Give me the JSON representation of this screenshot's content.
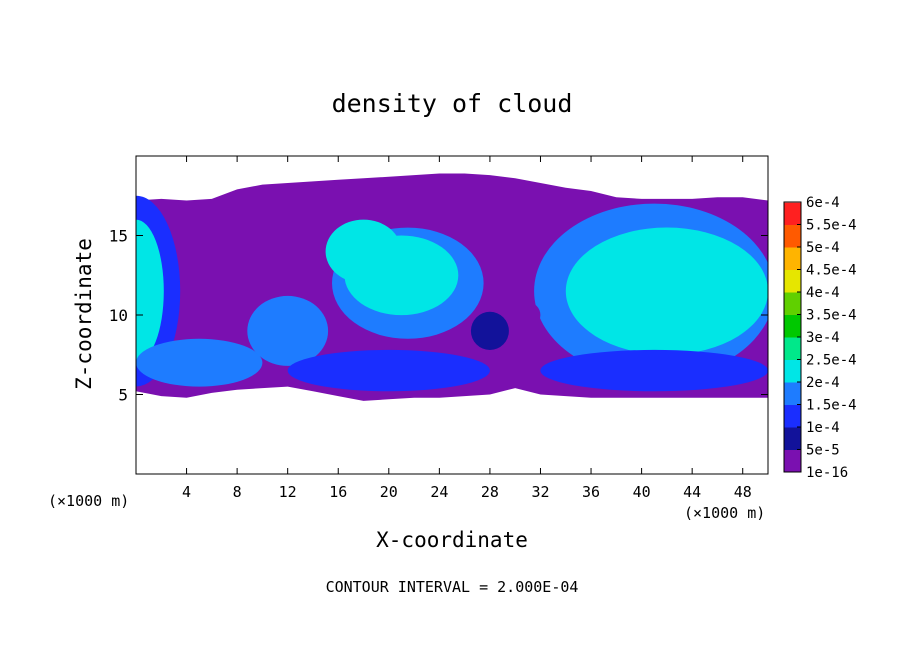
{
  "chart_data": {
    "type": "heatmap",
    "title": "density of cloud",
    "xlabel": "X-coordinate",
    "ylabel": "Z-coordinate",
    "x_unit_left": "(×1000 m)",
    "x_unit_right": "(×1000 m)",
    "xlim": [
      0,
      50
    ],
    "ylim": [
      0,
      20
    ],
    "x_ticks": [
      4,
      8,
      12,
      16,
      20,
      24,
      28,
      32,
      36,
      40,
      44,
      48
    ],
    "y_ticks": [
      5,
      10,
      15
    ],
    "footer": "CONTOUR INTERVAL = 2.000E-04",
    "colorbar": {
      "levels": [
        "1e-16",
        "5e-5",
        "1e-4",
        "1.5e-4",
        "2e-4",
        "2.5e-4",
        "3e-4",
        "3.5e-4",
        "4e-4",
        "4.5e-4",
        "5e-4",
        "5.5e-4",
        "6e-4"
      ],
      "colors": [
        "#7a10b0",
        "#12129a",
        "#1a2eff",
        "#1e7cff",
        "#00e6e6",
        "#00e88a",
        "#00c800",
        "#60d000",
        "#e6e600",
        "#ffb400",
        "#ff5a00",
        "#ff2020",
        "#ff8080"
      ]
    },
    "cloud_profile": [
      {
        "x": 0.0,
        "bottom": 5.2,
        "top": 17.2
      },
      {
        "x": 2.0,
        "bottom": 4.9,
        "top": 17.3
      },
      {
        "x": 4.0,
        "bottom": 4.8,
        "top": 17.2
      },
      {
        "x": 6.0,
        "bottom": 5.1,
        "top": 17.3
      },
      {
        "x": 8.0,
        "bottom": 5.3,
        "top": 17.9
      },
      {
        "x": 10.0,
        "bottom": 5.4,
        "top": 18.2
      },
      {
        "x": 12.0,
        "bottom": 5.5,
        "top": 18.3
      },
      {
        "x": 14.0,
        "bottom": 5.2,
        "top": 18.4
      },
      {
        "x": 16.0,
        "bottom": 4.9,
        "top": 18.5
      },
      {
        "x": 18.0,
        "bottom": 4.6,
        "top": 18.6
      },
      {
        "x": 20.0,
        "bottom": 4.7,
        "top": 18.7
      },
      {
        "x": 22.0,
        "bottom": 4.8,
        "top": 18.8
      },
      {
        "x": 24.0,
        "bottom": 4.8,
        "top": 18.9
      },
      {
        "x": 26.0,
        "bottom": 4.9,
        "top": 18.9
      },
      {
        "x": 28.0,
        "bottom": 5.0,
        "top": 18.8
      },
      {
        "x": 30.0,
        "bottom": 5.4,
        "top": 18.6
      },
      {
        "x": 32.0,
        "bottom": 5.0,
        "top": 18.3
      },
      {
        "x": 34.0,
        "bottom": 4.9,
        "top": 18.0
      },
      {
        "x": 36.0,
        "bottom": 4.8,
        "top": 17.8
      },
      {
        "x": 38.0,
        "bottom": 4.8,
        "top": 17.4
      },
      {
        "x": 40.0,
        "bottom": 4.8,
        "top": 17.3
      },
      {
        "x": 42.0,
        "bottom": 4.8,
        "top": 17.3
      },
      {
        "x": 44.0,
        "bottom": 4.8,
        "top": 17.3
      },
      {
        "x": 46.0,
        "bottom": 4.8,
        "top": 17.4
      },
      {
        "x": 48.0,
        "bottom": 4.8,
        "top": 17.4
      },
      {
        "x": 50.0,
        "bottom": 4.8,
        "top": 17.2
      }
    ],
    "density_regions": [
      {
        "name": "left-column-edge",
        "x": 0.0,
        "y": 11.5,
        "rx": 3.5,
        "ry": 6.0,
        "level": 2
      },
      {
        "name": "left-column-core",
        "x": 0.0,
        "y": 11.5,
        "rx": 2.2,
        "ry": 4.5,
        "level": 4
      },
      {
        "name": "lower-band-left",
        "x": 5.0,
        "y": 7.0,
        "rx": 5.0,
        "ry": 1.5,
        "level": 3
      },
      {
        "name": "lobe-8-11",
        "x": 12.0,
        "y": 9.0,
        "rx": 3.2,
        "ry": 2.2,
        "level": 3
      },
      {
        "name": "lower-band-mid",
        "x": 20.0,
        "y": 6.5,
        "rx": 8.0,
        "ry": 1.3,
        "level": 2
      },
      {
        "name": "mid-plume-edge",
        "x": 21.5,
        "y": 12.0,
        "rx": 6.0,
        "ry": 3.5,
        "level": 3
      },
      {
        "name": "mid-plume-core",
        "x": 21.0,
        "y": 12.5,
        "rx": 4.5,
        "ry": 2.5,
        "level": 4
      },
      {
        "name": "mid-plume-top",
        "x": 18.0,
        "y": 14.0,
        "rx": 3.0,
        "ry": 2.0,
        "level": 4
      },
      {
        "name": "right-plume-edge",
        "x": 41.0,
        "y": 11.5,
        "rx": 9.5,
        "ry": 5.5,
        "level": 3
      },
      {
        "name": "right-plume-core",
        "x": 42.0,
        "y": 11.5,
        "rx": 8.0,
        "ry": 4.0,
        "level": 4
      },
      {
        "name": "right-plume-inner",
        "x": 45.0,
        "y": 12.0,
        "rx": 4.0,
        "ry": 2.5,
        "level": 4
      },
      {
        "name": "lower-band-right",
        "x": 41.0,
        "y": 6.5,
        "rx": 9.0,
        "ry": 1.3,
        "level": 2
      },
      {
        "name": "eddy-27",
        "x": 28.0,
        "y": 9.0,
        "rx": 1.5,
        "ry": 1.2,
        "level": 1
      },
      {
        "name": "eddy-30",
        "x": 31.0,
        "y": 10.0,
        "rx": 1.0,
        "ry": 0.8,
        "level": 0
      }
    ]
  }
}
